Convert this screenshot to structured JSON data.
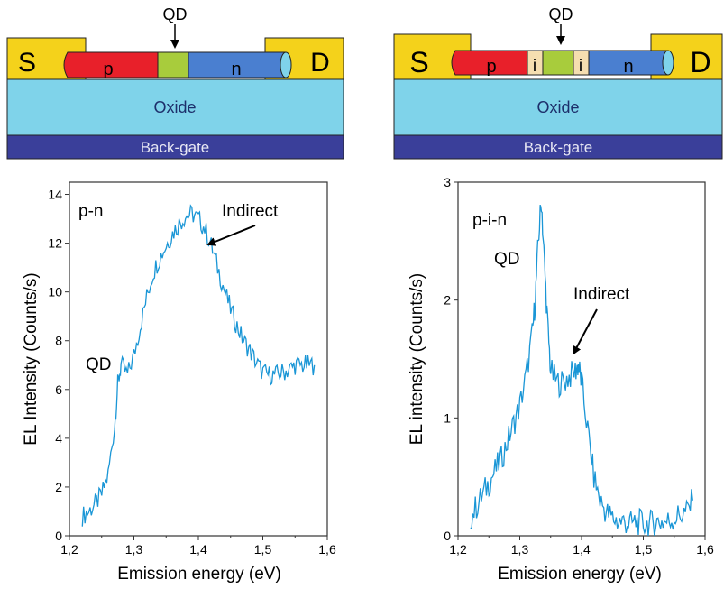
{
  "diagrams": [
    {
      "qd_label": "QD",
      "source_label": "S",
      "drain_label": "D",
      "oxide_label": "Oxide",
      "gate_label": "Back-gate",
      "segments": [
        "p",
        "n"
      ]
    },
    {
      "qd_label": "QD",
      "source_label": "S",
      "drain_label": "D",
      "oxide_label": "Oxide",
      "gate_label": "Back-gate",
      "segments": [
        "p",
        "i",
        "i",
        "n"
      ]
    }
  ],
  "colors": {
    "electrode": "#f4d21b",
    "p_region": "#e8202a",
    "qd_region": "#a8cc3c",
    "n_region": "#4a7fd0",
    "i_region": "#f5deb0",
    "oxide": "#7fd3ea",
    "backgate": "#3a3f9a",
    "trace": "#1a96d6"
  },
  "chart_data": [
    {
      "type": "line",
      "xlabel": "Emission energy (eV)",
      "ylabel": "EL Intensity (Counts/s)",
      "xlim": [
        1.2,
        1.6
      ],
      "ylim": [
        0,
        14.5
      ],
      "x_ticks": [
        "1,2",
        "1,3",
        "1,4",
        "1,5",
        "1,6"
      ],
      "y_ticks": [
        "0",
        "2",
        "4",
        "6",
        "8",
        "10",
        "12",
        "14"
      ],
      "panel_label": "p-n",
      "annotations": [
        "QD",
        "Indirect"
      ],
      "series": [
        {
          "x": [
            1.22,
            1.23,
            1.24,
            1.25,
            1.26,
            1.27,
            1.275,
            1.28,
            1.29,
            1.3,
            1.31,
            1.32,
            1.33,
            1.34,
            1.35,
            1.36,
            1.37,
            1.38,
            1.39,
            1.4,
            1.41,
            1.42,
            1.43,
            1.44,
            1.45,
            1.46,
            1.47,
            1.48,
            1.49,
            1.5,
            1.51,
            1.52,
            1.53,
            1.54,
            1.55,
            1.56,
            1.57,
            1.58
          ],
          "values": [
            0.8,
            1.0,
            1.3,
            1.7,
            2.5,
            4.5,
            6.2,
            7.0,
            6.6,
            7.4,
            8.6,
            9.8,
            10.8,
            11.4,
            11.9,
            12.4,
            12.8,
            13.1,
            13.2,
            13.0,
            12.6,
            11.9,
            11.0,
            10.1,
            9.3,
            8.6,
            8.0,
            7.6,
            7.1,
            6.7,
            6.6,
            6.6,
            6.7,
            6.8,
            7.0,
            7.0,
            7.0,
            7.0
          ]
        }
      ]
    },
    {
      "type": "line",
      "xlabel": "Emission energy (eV)",
      "ylabel": "EL intensity (Counts/s)",
      "xlim": [
        1.2,
        1.6
      ],
      "ylim": [
        0,
        3
      ],
      "x_ticks": [
        "1,2",
        "1,3",
        "1,4",
        "1,5",
        "1,6"
      ],
      "y_ticks": [
        "0",
        "1",
        "2",
        "3"
      ],
      "panel_label": "p-i-n",
      "annotations": [
        "QD",
        "Indirect"
      ],
      "series": [
        {
          "x": [
            1.22,
            1.23,
            1.24,
            1.25,
            1.26,
            1.27,
            1.28,
            1.29,
            1.3,
            1.31,
            1.32,
            1.325,
            1.33,
            1.335,
            1.34,
            1.345,
            1.35,
            1.36,
            1.37,
            1.38,
            1.39,
            1.395,
            1.4,
            1.41,
            1.42,
            1.43,
            1.44,
            1.45,
            1.46,
            1.47,
            1.48,
            1.49,
            1.5,
            1.51,
            1.52,
            1.53,
            1.54,
            1.55,
            1.56,
            1.57,
            1.58
          ],
          "values": [
            0.15,
            0.25,
            0.35,
            0.45,
            0.55,
            0.65,
            0.8,
            0.95,
            1.1,
            1.35,
            1.7,
            2.0,
            2.5,
            2.85,
            2.3,
            1.8,
            1.4,
            1.3,
            1.3,
            1.35,
            1.4,
            1.45,
            1.3,
            0.9,
            0.5,
            0.3,
            0.2,
            0.15,
            0.12,
            0.12,
            0.1,
            0.12,
            0.1,
            0.1,
            0.12,
            0.12,
            0.12,
            0.15,
            0.18,
            0.2,
            0.3
          ]
        }
      ]
    }
  ]
}
